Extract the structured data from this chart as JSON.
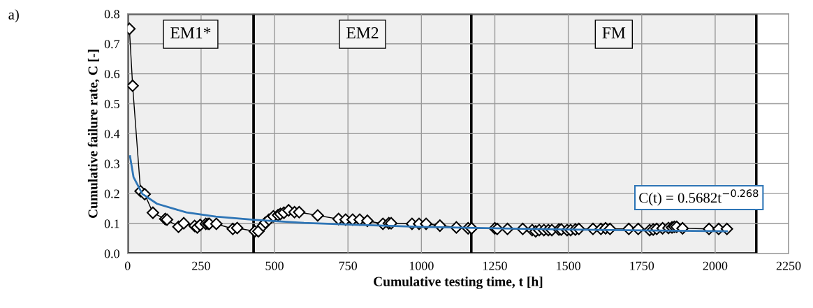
{
  "chart_data": {
    "type": "line",
    "xlabel": "Cumulative testing time, t [h]",
    "ylabel": "Cumulative failure rate, C [-]",
    "annotations": [
      "a)",
      "C(t) = 0.5682t$^{−0.268}$"
    ],
    "xlim": [
      0,
      2250
    ],
    "xticks": [
      0,
      250,
      500,
      750,
      1000,
      1250,
      1500,
      1750,
      2000,
      2250
    ],
    "ylim": [
      0,
      0.8
    ],
    "yticks": [
      {
        "value": 0,
        "label": "0.0"
      },
      0.1,
      0.2,
      0.3,
      0.4,
      0.5,
      0.6,
      0.7,
      0.8
    ],
    "grid": true,
    "legend": false,
    "bands": [
      {
        "axis": "x",
        "from": 0,
        "to": 429,
        "label": "EM1*",
        "color": "#efefef"
      },
      {
        "axis": "x",
        "from": 429,
        "to": 1170,
        "label": "EM2",
        "color": "#efefef"
      },
      {
        "axis": "x",
        "from": 1170,
        "to": 2140,
        "label": "FM",
        "color": "#efefef"
      }
    ],
    "series": [
      {
        "color": "#000000",
        "marker": "diamond",
        "line_style": "solid",
        "x": [
          6,
          17,
          44,
          58,
          86,
          128,
          134,
          173,
          191,
          228,
          237,
          247,
          266,
          274,
          278,
          302,
          358,
          373,
          433,
          445,
          461,
          469,
          481,
          496,
          512,
          520,
          532,
          548,
          568,
          584,
          647,
          718,
          742,
          766,
          790,
          816,
          869,
          889,
          897,
          968,
          992,
          1016,
          1063,
          1119,
          1159,
          1171,
          1250,
          1258,
          1293,
          1345,
          1377,
          1389,
          1401,
          1417,
          1432,
          1444,
          1468,
          1476,
          1496,
          1508,
          1524,
          1536,
          1584,
          1611,
          1627,
          1642,
          1706,
          1738,
          1777,
          1789,
          1801,
          1821,
          1841,
          1853,
          1861,
          1869,
          1889,
          1979,
          2012,
          2040
        ],
        "values": [
          0.75,
          0.56,
          0.208,
          0.198,
          0.136,
          0.115,
          0.113,
          0.089,
          0.101,
          0.092,
          0.087,
          0.095,
          0.099,
          0.099,
          0.099,
          0.099,
          0.082,
          0.085,
          0.074,
          0.074,
          0.093,
          0.103,
          0.113,
          0.124,
          0.128,
          0.132,
          0.136,
          0.144,
          0.138,
          0.138,
          0.127,
          0.115,
          0.113,
          0.113,
          0.113,
          0.109,
          0.099,
          0.101,
          0.101,
          0.099,
          0.099,
          0.099,
          0.093,
          0.087,
          0.084,
          0.084,
          0.084,
          0.082,
          0.082,
          0.082,
          0.078,
          0.074,
          0.078,
          0.078,
          0.078,
          0.078,
          0.08,
          0.08,
          0.078,
          0.078,
          0.08,
          0.082,
          0.082,
          0.082,
          0.084,
          0.082,
          0.082,
          0.082,
          0.078,
          0.08,
          0.082,
          0.084,
          0.085,
          0.087,
          0.089,
          0.089,
          0.084,
          0.082,
          0.082,
          0.082
        ]
      },
      {
        "type": "line",
        "color": "#2e75b6",
        "marker": "none",
        "line_style": "solid",
        "x": [
          8,
          20,
          50,
          100,
          200,
          300,
          435,
          600,
          800,
          1000,
          1250,
          1500,
          1750,
          2040
        ],
        "values": [
          0.325,
          0.255,
          0.199,
          0.166,
          0.137,
          0.123,
          0.112,
          0.102,
          0.095,
          0.089,
          0.084,
          0.08,
          0.077,
          0.074
        ]
      }
    ]
  }
}
